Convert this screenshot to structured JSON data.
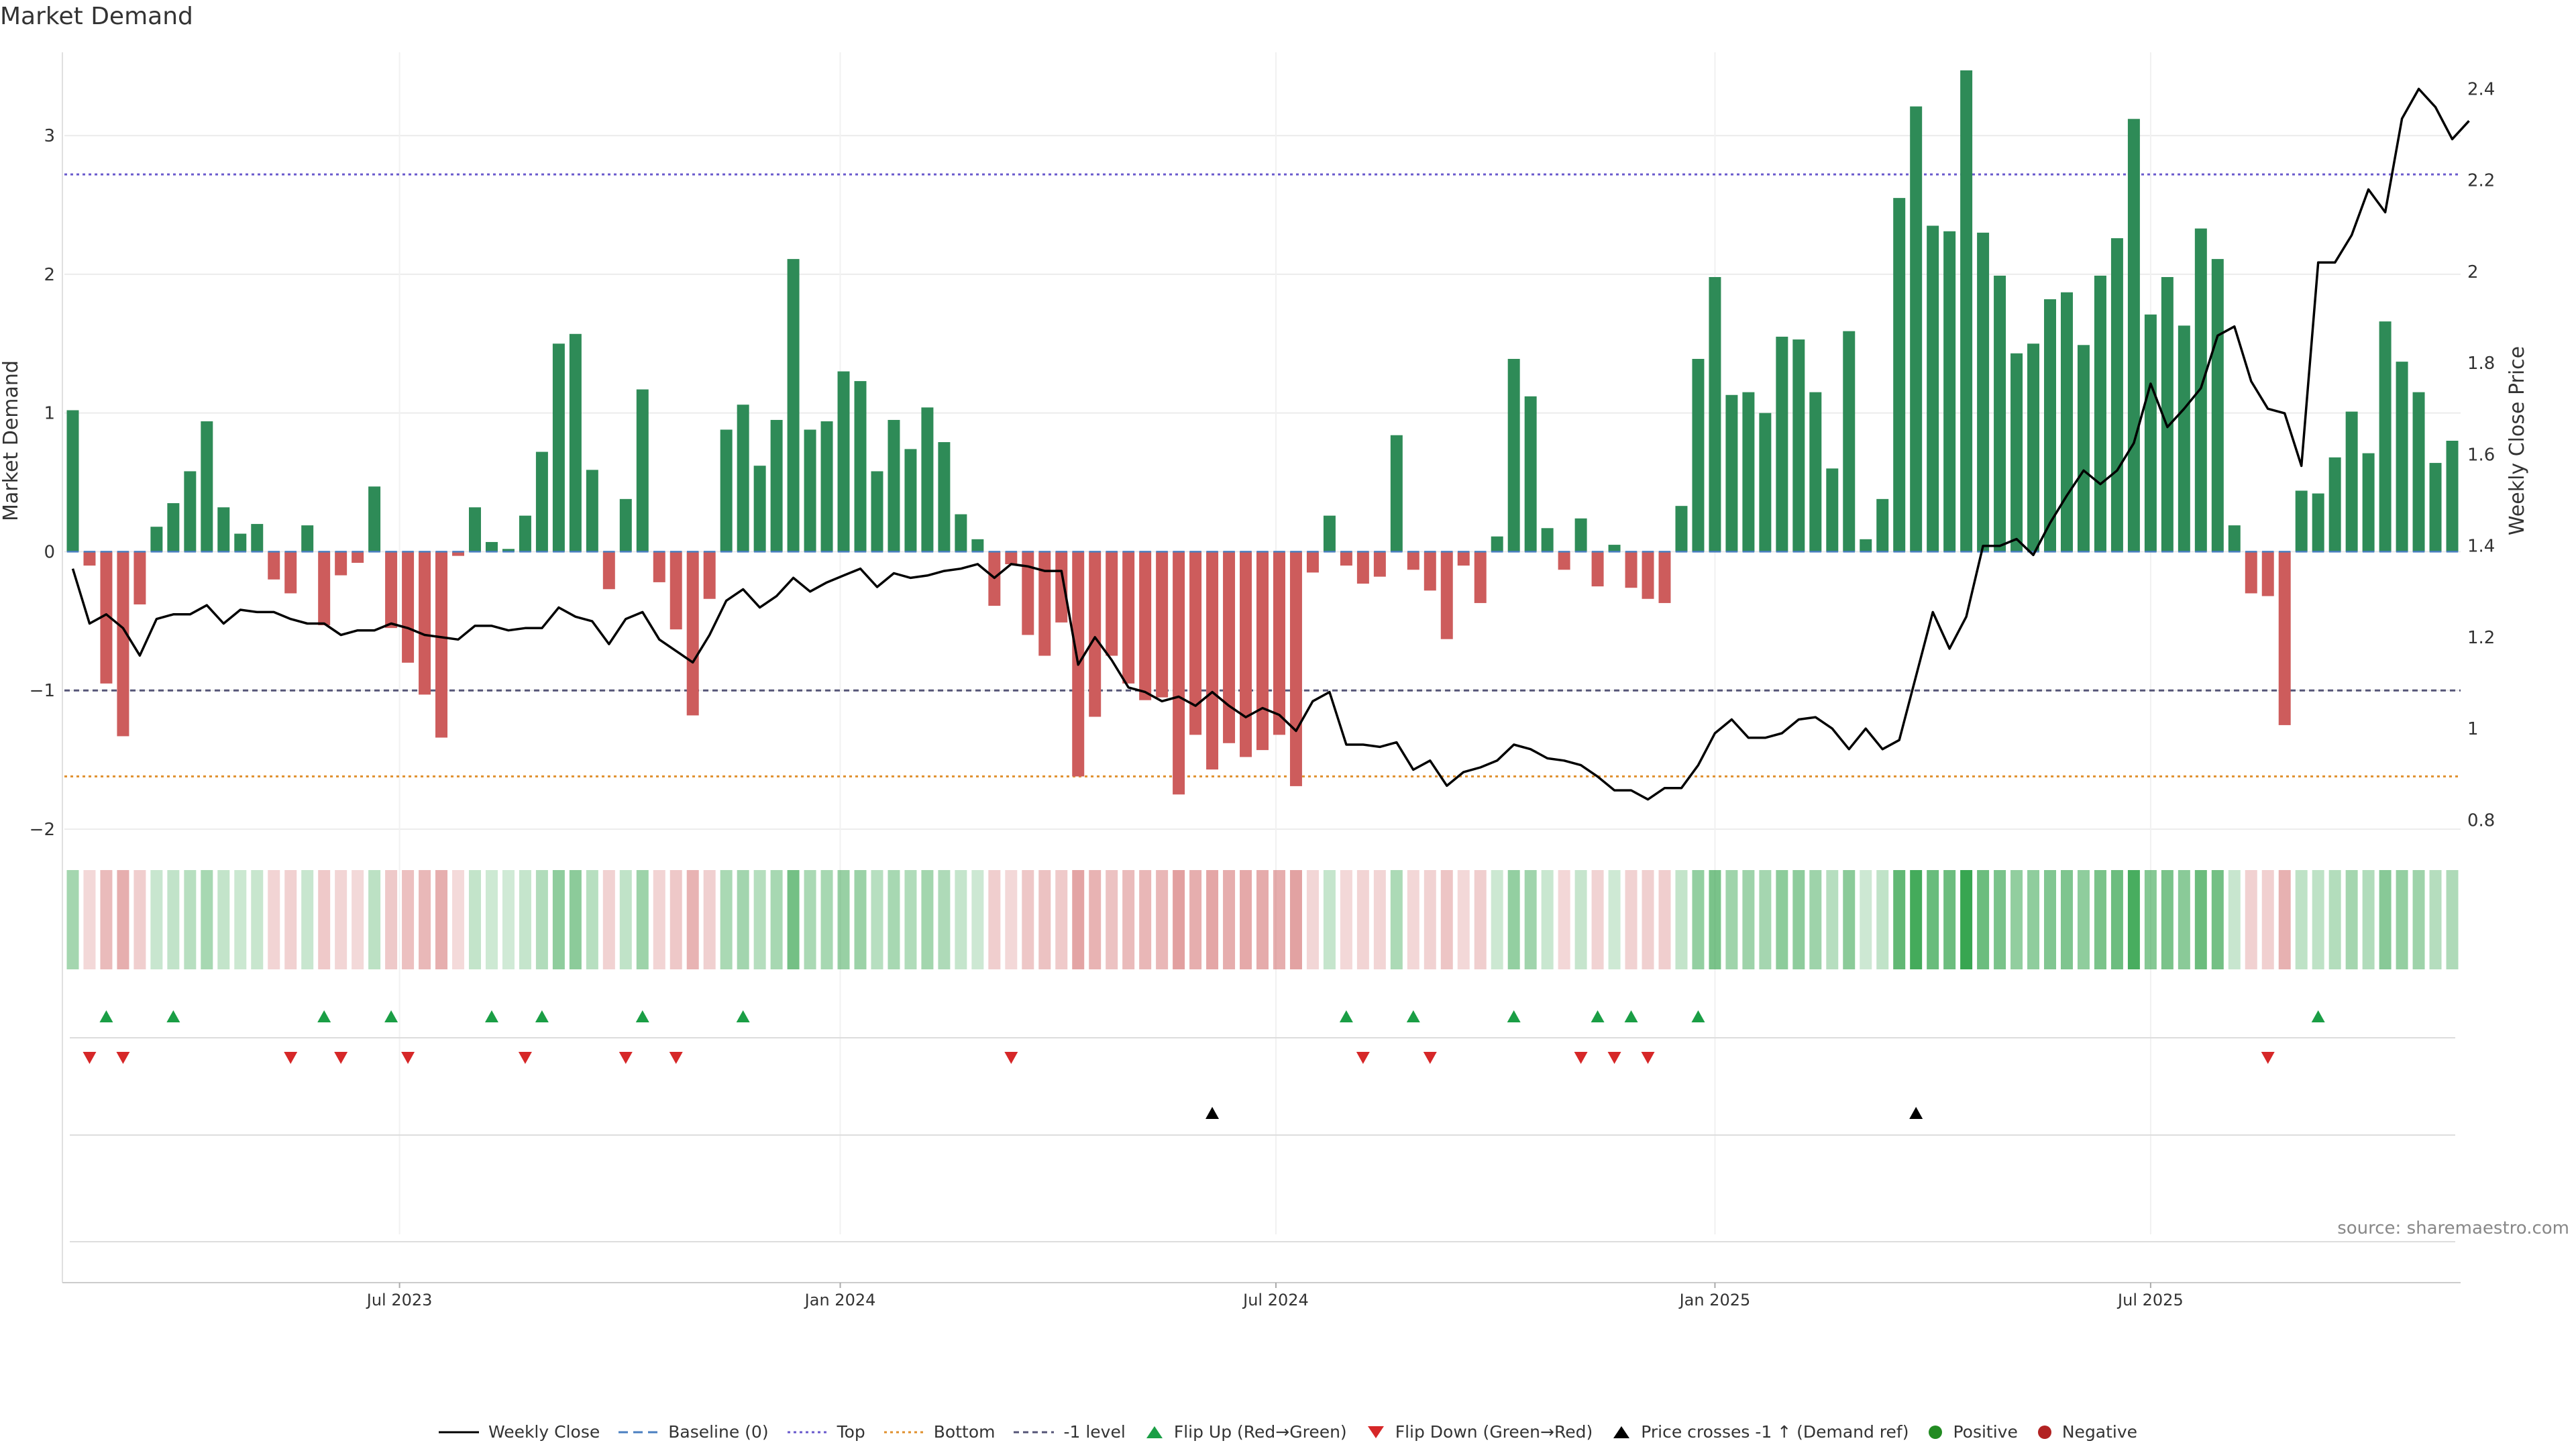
{
  "title": "Market Demand",
  "source": "source: sharemaestro.com",
  "colors": {
    "positive": "#2e8b57",
    "negative": "#cd5c5c",
    "price": "#000000",
    "top": "#6a5acd",
    "bottom": "#e0902e",
    "minus_one": "#555577",
    "baseline": "#4a7fc0",
    "flip_up": "#1a9e45",
    "flip_down": "#d62728",
    "cross": "#000000",
    "dot_pos": "#228b22",
    "dot_neg": "#b22222"
  },
  "legend": [
    {
      "key": "weekly_close",
      "label": "Weekly Close"
    },
    {
      "key": "baseline",
      "label": "Baseline (0)"
    },
    {
      "key": "top",
      "label": "Top"
    },
    {
      "key": "bottom",
      "label": "Bottom"
    },
    {
      "key": "minus_one",
      "label": "-1 level"
    },
    {
      "key": "flip_up",
      "label": "Flip Up (Red→Green)"
    },
    {
      "key": "flip_down",
      "label": "Flip Down (Green→Red)"
    },
    {
      "key": "price_cross",
      "label": "Price crosses -1 ↑ (Demand ref)"
    },
    {
      "key": "positive",
      "label": "Positive"
    },
    {
      "key": "negative",
      "label": "Negative"
    }
  ],
  "chart_data": {
    "type": "bar",
    "title": "Market Demand",
    "ylabel": "Market Demand",
    "y2label": "Weekly Close Price",
    "ylim": [
      -2.0,
      3.6
    ],
    "y2lim": [
      0.78,
      2.48
    ],
    "yticks": [
      -2,
      -1,
      0,
      1,
      2,
      3
    ],
    "ytick_labels": [
      "−2",
      "−1",
      "0",
      "1",
      "2",
      "3"
    ],
    "y2ticks": [
      0.8,
      1.0,
      1.2,
      1.4,
      1.6,
      1.8,
      2.0,
      2.2,
      2.4
    ],
    "y2tick_labels": [
      "0.8",
      "1",
      "1.2",
      "1.4",
      "1.6",
      "1.8",
      "2",
      "2.2",
      "2.4"
    ],
    "xlim": [
      0,
      144
    ],
    "xticks": [
      {
        "pos": 20,
        "label": "Jul 2023"
      },
      {
        "pos": 46.3,
        "label": "Jan 2024"
      },
      {
        "pos": 72.3,
        "label": "Jul 2024"
      },
      {
        "pos": 98.5,
        "label": "Jan 2025"
      },
      {
        "pos": 124.5,
        "label": "Jul 2025"
      }
    ],
    "levels": {
      "top": 2.72,
      "bottom": -1.62,
      "minus_one": -1.0,
      "baseline": 0
    },
    "demand": [
      1.02,
      -0.1,
      -0.95,
      -1.33,
      -0.38,
      0.18,
      0.35,
      0.58,
      0.94,
      0.32,
      0.13,
      0.2,
      -0.2,
      -0.3,
      0.19,
      -0.53,
      -0.17,
      -0.08,
      0.47,
      -0.55,
      -0.8,
      -1.03,
      -1.34,
      -0.03,
      0.32,
      0.07,
      0.02,
      0.26,
      0.72,
      1.5,
      1.57,
      0.59,
      -0.27,
      0.38,
      1.17,
      -0.22,
      -0.56,
      -1.18,
      -0.34,
      0.88,
      1.06,
      0.62,
      0.95,
      2.11,
      0.88,
      0.94,
      1.3,
      1.23,
      0.58,
      0.95,
      0.74,
      1.04,
      0.79,
      0.27,
      0.09,
      -0.39,
      -0.09,
      -0.6,
      -0.75,
      -0.51,
      -1.62,
      -1.19,
      -0.75,
      -0.95,
      -1.07,
      -1.05,
      -1.75,
      -1.32,
      -1.57,
      -1.38,
      -1.48,
      -1.43,
      -1.32,
      -1.69,
      -0.15,
      0.26,
      -0.1,
      -0.23,
      -0.18,
      0.84,
      -0.13,
      -0.28,
      -0.63,
      -0.1,
      -0.37,
      0.11,
      1.39,
      1.12,
      0.17,
      -0.13,
      0.24,
      -0.25,
      0.05,
      -0.26,
      -0.34,
      -0.37,
      0.33,
      1.39,
      1.98,
      1.13,
      1.15,
      1.0,
      1.55,
      1.53,
      1.15,
      0.6,
      1.59,
      0.09,
      0.38,
      2.55,
      3.21,
      2.35,
      2.31,
      3.47,
      2.3,
      1.99,
      1.43,
      1.5,
      1.82,
      1.87,
      1.49,
      1.99,
      2.26,
      3.12,
      1.71,
      1.98,
      1.63,
      2.33,
      2.11,
      0.19,
      -0.3,
      -0.32,
      -1.25,
      0.44,
      0.42,
      0.68,
      1.01,
      0.71,
      1.66,
      1.37,
      1.15,
      0.64,
      0.8
    ],
    "price": [
      1.35,
      1.23,
      1.25,
      1.22,
      1.16,
      1.24,
      1.25,
      1.25,
      1.27,
      1.23,
      1.26,
      1.255,
      1.255,
      1.24,
      1.23,
      1.23,
      1.205,
      1.215,
      1.215,
      1.23,
      1.22,
      1.205,
      1.2,
      1.195,
      1.225,
      1.225,
      1.215,
      1.22,
      1.22,
      1.265,
      1.245,
      1.235,
      1.185,
      1.24,
      1.255,
      1.195,
      1.17,
      1.145,
      1.205,
      1.28,
      1.305,
      1.265,
      1.29,
      1.33,
      1.3,
      1.32,
      1.335,
      1.35,
      1.31,
      1.34,
      1.33,
      1.335,
      1.345,
      1.35,
      1.36,
      1.33,
      1.36,
      1.355,
      1.345,
      1.345,
      1.14,
      1.2,
      1.15,
      1.09,
      1.08,
      1.06,
      1.07,
      1.05,
      1.08,
      1.05,
      1.025,
      1.045,
      1.03,
      0.995,
      1.06,
      1.08,
      0.965,
      0.965,
      0.96,
      0.97,
      0.91,
      0.93,
      0.875,
      0.905,
      0.915,
      0.93,
      0.965,
      0.955,
      0.935,
      0.93,
      0.92,
      0.895,
      0.865,
      0.865,
      0.845,
      0.87,
      0.87,
      0.92,
      0.99,
      1.02,
      0.98,
      0.98,
      0.99,
      1.02,
      1.025,
      1.0,
      0.955,
      1.0,
      0.955,
      0.975,
      1.115,
      1.255,
      1.175,
      1.245,
      1.4,
      1.4,
      1.415,
      1.38,
      1.45,
      1.51,
      1.565,
      1.535,
      1.565,
      1.625,
      1.755,
      1.66,
      1.7,
      1.745,
      1.86,
      1.88,
      1.76,
      1.7,
      1.69,
      1.575,
      2.02,
      2.02,
      2.08,
      2.18,
      2.13,
      2.335,
      2.4,
      2.36,
      2.29,
      2.33
    ],
    "flip_up": [
      2,
      6,
      15,
      19,
      25,
      28,
      34,
      40,
      76,
      80,
      86,
      91,
      93,
      97,
      134
    ],
    "flip_down": [
      1,
      3,
      13,
      16,
      20,
      27,
      33,
      36,
      56,
      77,
      81,
      90,
      92,
      94,
      131
    ],
    "price_cross": [
      68,
      110
    ]
  }
}
